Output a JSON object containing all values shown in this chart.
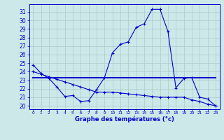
{
  "hours": [
    0,
    1,
    2,
    3,
    4,
    5,
    6,
    7,
    8,
    9,
    10,
    11,
    12,
    13,
    14,
    15,
    16,
    17,
    18,
    19,
    20,
    21,
    22,
    23
  ],
  "temp_main": [
    24.8,
    23.8,
    23.2,
    22.2,
    21.1,
    21.2,
    20.5,
    20.6,
    21.9,
    23.3,
    26.2,
    27.2,
    27.5,
    29.2,
    29.6,
    31.3,
    31.3,
    28.7,
    22.1,
    23.2,
    23.3,
    21.0,
    20.8,
    20.0
  ],
  "temp_ref1": [
    23.3,
    23.3,
    23.3,
    23.3,
    23.3,
    23.3,
    23.3,
    23.3,
    23.3,
    23.3,
    23.3,
    23.3,
    23.3,
    23.3,
    23.3,
    23.3,
    23.3,
    23.3,
    23.3,
    23.3,
    23.3,
    23.3,
    23.3,
    23.3
  ],
  "temp_ref2": [
    24.0,
    23.7,
    23.4,
    23.1,
    22.8,
    22.5,
    22.2,
    21.9,
    21.6,
    21.6,
    21.6,
    21.5,
    21.4,
    21.3,
    21.2,
    21.1,
    21.0,
    21.0,
    21.0,
    21.0,
    20.7,
    20.5,
    20.2,
    20.0
  ],
  "line_color": "#0000cc",
  "bg_color": "#cce8e8",
  "grid_color": "#aacccc",
  "xlabel": "Graphe des températures (°c)",
  "ylabel_ticks": [
    20,
    21,
    22,
    23,
    24,
    25,
    26,
    27,
    28,
    29,
    30,
    31
  ],
  "ylim": [
    19.6,
    31.9
  ],
  "xlim": [
    -0.5,
    23.5
  ]
}
